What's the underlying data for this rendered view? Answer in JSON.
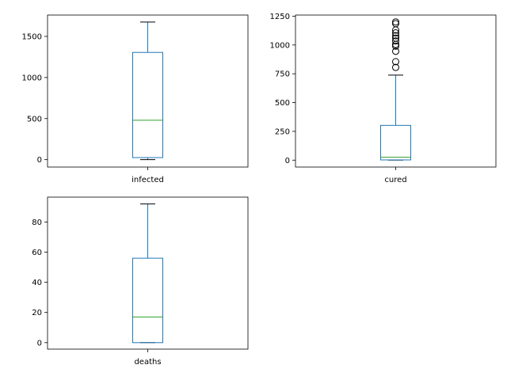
{
  "chart_data": [
    {
      "type": "box",
      "category": "infected",
      "ylim": [
        -90,
        1760
      ],
      "yticks": [
        0,
        500,
        1000,
        1500
      ],
      "box": {
        "min": 0,
        "q1": 25,
        "median": 480,
        "q3": 1305,
        "max": 1675
      },
      "outliers": []
    },
    {
      "type": "box",
      "category": "cured",
      "ylim": [
        -60,
        1260
      ],
      "yticks": [
        0,
        250,
        500,
        750,
        1000,
        1250
      ],
      "box": {
        "min": 0,
        "q1": 2,
        "median": 25,
        "q3": 302,
        "max": 738
      },
      "outliers": [
        805,
        855,
        945,
        990,
        1005,
        1035,
        1060,
        1080,
        1105,
        1130,
        1185,
        1200
      ]
    },
    {
      "type": "box",
      "category": "deaths",
      "ylim": [
        -4.3,
        96.5
      ],
      "yticks": [
        0,
        20,
        40,
        60,
        80
      ],
      "box": {
        "min": 0,
        "q1": 0,
        "median": 17,
        "q3": 56,
        "max": 92
      },
      "outliers": []
    }
  ],
  "colors": {
    "box": "#1f77b4",
    "median": "#2ca02c",
    "caps": "#000000"
  }
}
